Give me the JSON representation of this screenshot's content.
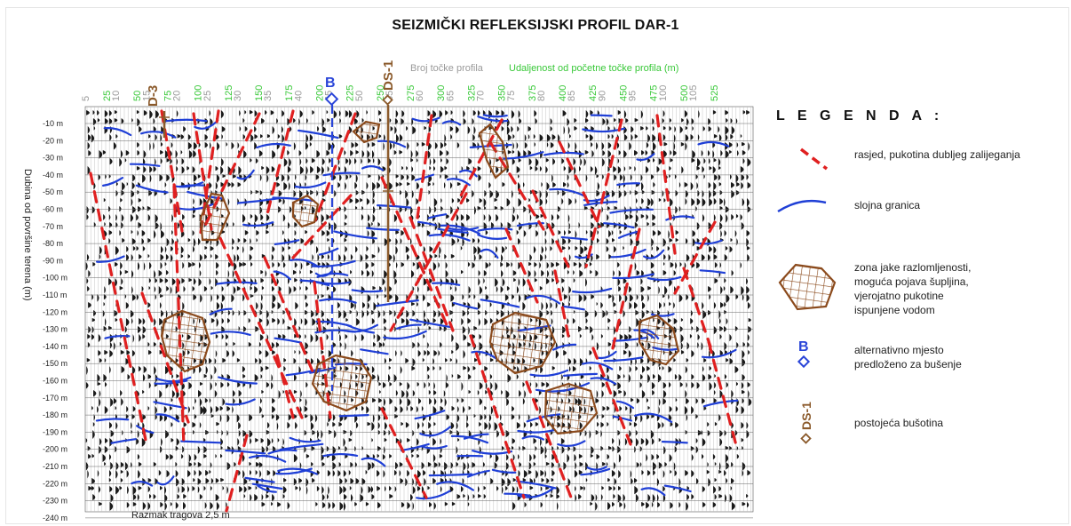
{
  "title": "SEIZMIČKI REFLEKSIJSKI PROFIL DAR-1",
  "header": {
    "trace_numbers_label": "Broj točke profila",
    "distance_label": "Udaljenost od početne točke profila (m)"
  },
  "y_axis": {
    "title": "Dubina od površine terena (m)",
    "depth_labels": [
      "-10 m",
      "-20 m",
      "-30 m",
      "-40 m",
      "-50 m",
      "-60 m",
      "-70 m",
      "-80 m",
      "-90 m",
      "-100 m",
      "-110 m",
      "-120 m",
      "-130 m",
      "-140 m",
      "-150 m",
      "-160 m",
      "-170 m",
      "-180 m",
      "-190 m",
      "-200 m",
      "-210 m",
      "-220 m",
      "-230 m",
      "-240 m"
    ]
  },
  "trace_numbers": [
    "5",
    "10",
    "15",
    "20",
    "25",
    "30",
    "35",
    "40",
    "45",
    "50",
    "55",
    "60",
    "65",
    "70",
    "75",
    "80",
    "85",
    "90",
    "95",
    "100",
    "105"
  ],
  "distances": [
    "25",
    "50",
    "75",
    "100",
    "125",
    "150",
    "175",
    "200",
    "225",
    "250",
    "275",
    "300",
    "325",
    "350",
    "375",
    "400",
    "425",
    "450",
    "475",
    "500",
    "525"
  ],
  "wells": {
    "d3": "D-3",
    "b": "B",
    "ds1": "DS-1"
  },
  "footer": {
    "trace_spacing": "Razmak tragova 2,5 m"
  },
  "legend": {
    "heading": "L E G E N D A :",
    "fault": "rasjed, pukotina dubljeg zalijeganja",
    "layer": "slojna granica",
    "zone": [
      "zona jake razlomljenosti,",
      "moguća pojava šupljina,",
      "vjerojatno pukotine",
      "ispunjene vodom"
    ],
    "b_symbol": "B",
    "alt": [
      "alternativno mjesto",
      "predloženo za bušenje"
    ],
    "ds_symbol": "DS-1",
    "existing": "postojeća bušotina"
  },
  "colors": {
    "fault": "#e02020",
    "layer": "#1f3fd6",
    "zone": "#8b4a1c",
    "well_b": "#2a45d8",
    "well_ds": "#8b5a2b",
    "green": "#38c838",
    "grey": "#9a9a9a"
  }
}
